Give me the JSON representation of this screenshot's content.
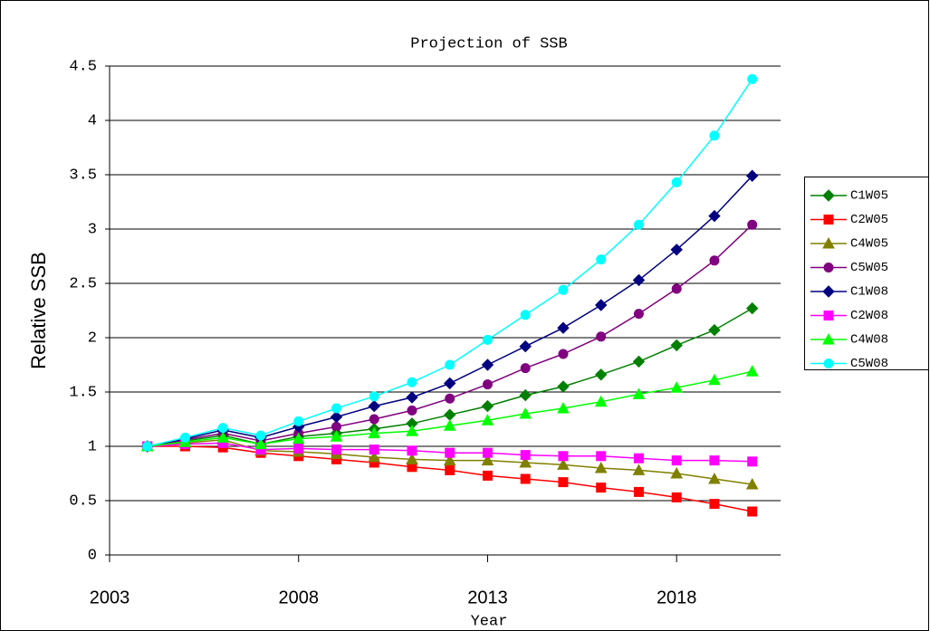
{
  "chart_data": {
    "type": "line",
    "title": "Projection of SSB",
    "x_label": "Year",
    "y_label": "Relative SSB",
    "x": [
      2004,
      2005,
      2006,
      2007,
      2008,
      2009,
      2010,
      2011,
      2012,
      2013,
      2014,
      2015,
      2016,
      2017,
      2018,
      2019,
      2020
    ],
    "xlim": [
      2003,
      2020.75
    ],
    "xticks": [
      2003,
      2008,
      2013,
      2018
    ],
    "ylim": [
      0,
      4.5
    ],
    "yticks": [
      0,
      0.5,
      1,
      1.5,
      2,
      2.5,
      3,
      3.5,
      4,
      4.5
    ],
    "grid": true,
    "legend": "right",
    "series": [
      {
        "name": "C1W05",
        "color": "#008000",
        "marker": "diamond",
        "values": [
          1.0,
          1.05,
          1.1,
          1.02,
          1.09,
          1.12,
          1.16,
          1.21,
          1.29,
          1.37,
          1.47,
          1.55,
          1.66,
          1.78,
          1.93,
          2.07,
          2.27
        ]
      },
      {
        "name": "C2W05",
        "color": "#ff0000",
        "marker": "square",
        "values": [
          1.0,
          1.0,
          0.99,
          0.94,
          0.91,
          0.88,
          0.85,
          0.81,
          0.78,
          0.73,
          0.7,
          0.67,
          0.62,
          0.58,
          0.53,
          0.47,
          0.4
        ]
      },
      {
        "name": "C4W05",
        "color": "#808000",
        "marker": "triangle",
        "values": [
          1.0,
          1.03,
          1.06,
          0.96,
          0.95,
          0.93,
          0.9,
          0.88,
          0.87,
          0.87,
          0.85,
          0.83,
          0.8,
          0.78,
          0.75,
          0.7,
          0.65
        ]
      },
      {
        "name": "C5W05",
        "color": "#800080",
        "marker": "circle",
        "values": [
          1.0,
          1.06,
          1.12,
          1.05,
          1.12,
          1.18,
          1.25,
          1.33,
          1.44,
          1.57,
          1.72,
          1.85,
          2.01,
          2.22,
          2.45,
          2.71,
          3.04
        ]
      },
      {
        "name": "C1W08",
        "color": "#000080",
        "marker": "diamond",
        "values": [
          1.0,
          1.07,
          1.15,
          1.08,
          1.18,
          1.27,
          1.37,
          1.45,
          1.58,
          1.75,
          1.92,
          2.09,
          2.3,
          2.53,
          2.81,
          3.12,
          3.49
        ]
      },
      {
        "name": "C2W08",
        "color": "#ff00ff",
        "marker": "square",
        "values": [
          1.0,
          1.02,
          1.03,
          0.97,
          0.98,
          0.97,
          0.97,
          0.96,
          0.94,
          0.94,
          0.92,
          0.91,
          0.91,
          0.89,
          0.87,
          0.87,
          0.86
        ]
      },
      {
        "name": "C4W08",
        "color": "#00ff00",
        "marker": "triangle",
        "values": [
          1.0,
          1.04,
          1.08,
          1.02,
          1.07,
          1.09,
          1.12,
          1.14,
          1.19,
          1.24,
          1.3,
          1.35,
          1.41,
          1.48,
          1.54,
          1.61,
          1.69
        ]
      },
      {
        "name": "C5W08",
        "color": "#00ffff",
        "marker": "circle",
        "values": [
          1.0,
          1.08,
          1.17,
          1.1,
          1.23,
          1.35,
          1.46,
          1.59,
          1.75,
          1.98,
          2.21,
          2.44,
          2.72,
          3.04,
          3.43,
          3.86,
          4.38
        ]
      }
    ]
  }
}
